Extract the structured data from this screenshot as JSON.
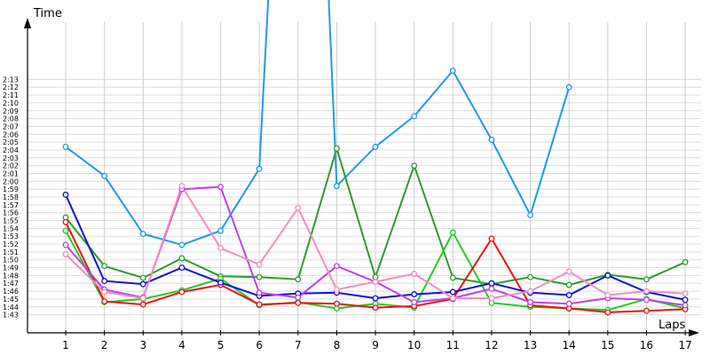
{
  "chart_data": {
    "type": "line",
    "ylabel": "Time",
    "xlabel": "Laps",
    "x": [
      1,
      2,
      3,
      4,
      5,
      6,
      7,
      8,
      9,
      10,
      11,
      12,
      13,
      14,
      15,
      16,
      17
    ],
    "y_tick_labels": [
      "1:43",
      "1:44",
      "1:45",
      "1:46",
      "1:47",
      "1:48",
      "1:49",
      "1:50",
      "1:51",
      "1:52",
      "1:53",
      "1:54",
      "1:55",
      "1:56",
      "1:57",
      "1:58",
      "1:59",
      "2:00",
      "2:01",
      "2:02",
      "2:03",
      "2:04",
      "2:05",
      "2:06",
      "2:07",
      "2:08",
      "2:09",
      "2:10",
      "2:11",
      "2:12",
      "2:13"
    ],
    "grid": true,
    "series": [
      {
        "color": "#1E9BE8",
        "points": [
          [
            1,
            "2:04.4"
          ],
          [
            2,
            "2:00.7"
          ],
          [
            3,
            "1:53.3"
          ],
          [
            4,
            "1:51.9"
          ],
          [
            5,
            "1:53.7"
          ],
          [
            6,
            "2:01.6"
          ],
          [
            8,
            "1:59.4"
          ],
          [
            9,
            "2:04.4"
          ],
          [
            10,
            "2:08.3"
          ],
          [
            11,
            "2:14.1"
          ],
          [
            12,
            "2:05.3"
          ],
          [
            13,
            "1:55.7"
          ],
          [
            14,
            "2:12.0"
          ]
        ]
      },
      {
        "color": "#2E9B2E",
        "points": [
          [
            1,
            "1:55.4"
          ],
          [
            2,
            "1:49.2"
          ],
          [
            3,
            "1:47.7"
          ],
          [
            4,
            "1:50.2"
          ],
          [
            5,
            "1:47.9"
          ],
          [
            6,
            "1:47.8"
          ],
          [
            7,
            "1:47.5"
          ],
          [
            8,
            "2:04.2"
          ],
          [
            9,
            "1:47.8"
          ],
          [
            10,
            "2:02.0"
          ],
          [
            11,
            "1:47.7"
          ],
          [
            12,
            "1:46.9"
          ],
          [
            13,
            "1:47.8"
          ],
          [
            14,
            "1:46.8"
          ],
          [
            15,
            "1:48.1"
          ],
          [
            16,
            "1:47.5"
          ],
          [
            17,
            "1:49.7"
          ]
        ]
      },
      {
        "color": "#22CC22",
        "points": [
          [
            1,
            "1:53.7"
          ],
          [
            2,
            "1:44.6"
          ],
          [
            3,
            "1:45.0"
          ],
          [
            4,
            "1:46.1"
          ],
          [
            5,
            "1:47.6"
          ],
          [
            6,
            "1:44.2"
          ],
          [
            7,
            "1:44.6"
          ],
          [
            8,
            "1:43.8"
          ],
          [
            9,
            "1:44.4"
          ],
          [
            10,
            "1:43.9"
          ],
          [
            11,
            "1:53.5"
          ],
          [
            12,
            "1:44.5"
          ],
          [
            13,
            "1:44.0"
          ],
          [
            14,
            "1:43.8"
          ],
          [
            15,
            "1:43.6"
          ],
          [
            16,
            "1:45.0"
          ],
          [
            17,
            "1:43.8"
          ]
        ]
      },
      {
        "color": "#EE1111",
        "points": [
          [
            1,
            "1:54.8"
          ],
          [
            2,
            "1:44.7"
          ],
          [
            3,
            "1:44.3"
          ],
          [
            4,
            "1:45.9"
          ],
          [
            5,
            "1:46.8"
          ],
          [
            6,
            "1:44.3"
          ],
          [
            7,
            "1:44.5"
          ],
          [
            8,
            "1:44.4"
          ],
          [
            9,
            "1:43.9"
          ],
          [
            10,
            "1:44.1"
          ],
          [
            11,
            "1:45.0"
          ],
          [
            12,
            "1:52.7"
          ],
          [
            13,
            "1:44.2"
          ],
          [
            14,
            "1:43.8"
          ],
          [
            15,
            "1:43.3"
          ],
          [
            16,
            "1:43.5"
          ],
          [
            17,
            "1:43.7"
          ]
        ]
      },
      {
        "color": "#1010DD",
        "points": [
          [
            1,
            "1:58.3"
          ],
          [
            2,
            "1:47.3"
          ],
          [
            3,
            "1:46.9"
          ],
          [
            4,
            "1:49.0"
          ],
          [
            5,
            "1:47.1"
          ],
          [
            6,
            "1:45.4"
          ],
          [
            7,
            "1:45.7"
          ],
          [
            8,
            "1:45.8"
          ],
          [
            9,
            "1:45.1"
          ],
          [
            10,
            "1:45.6"
          ],
          [
            11,
            "1:45.9"
          ],
          [
            12,
            "1:47.0"
          ],
          [
            13,
            "1:45.8"
          ],
          [
            14,
            "1:45.5"
          ],
          [
            15,
            "1:48.0"
          ],
          [
            16,
            "1:45.9"
          ],
          [
            17,
            "1:44.9"
          ]
        ]
      },
      {
        "color": "#C040E8",
        "points": [
          [
            1,
            "1:51.9"
          ],
          [
            2,
            "1:46.2"
          ],
          [
            3,
            "1:45.2"
          ],
          [
            4,
            "1:59.0"
          ],
          [
            5,
            "1:59.3"
          ],
          [
            6,
            "1:45.8"
          ],
          [
            7,
            "1:45.2"
          ],
          [
            8,
            "1:49.2"
          ],
          [
            9,
            "1:47.2"
          ],
          [
            10,
            "1:44.6"
          ],
          [
            11,
            "1:45.1"
          ],
          [
            12,
            "1:46.3"
          ],
          [
            13,
            "1:44.6"
          ],
          [
            14,
            "1:44.4"
          ],
          [
            15,
            "1:45.1"
          ],
          [
            16,
            "1:44.9"
          ],
          [
            17,
            "1:44.2"
          ]
        ]
      },
      {
        "color": "#F48CC0",
        "points": [
          [
            1,
            "1:50.7"
          ],
          [
            2,
            "1:45.9"
          ],
          [
            3,
            "1:45.1"
          ],
          [
            4,
            "1:59.4"
          ],
          [
            5,
            "1:51.5"
          ],
          [
            6,
            "1:49.4"
          ],
          [
            7,
            "1:56.6"
          ],
          [
            8,
            "1:46.2"
          ],
          [
            9,
            "1:47.2"
          ],
          [
            10,
            "1:48.2"
          ],
          [
            11,
            "1:45.1"
          ],
          [
            12,
            "1:45.1"
          ],
          [
            13,
            "1:46.0"
          ],
          [
            14,
            "1:48.5"
          ],
          [
            15,
            "1:45.5"
          ],
          [
            16,
            "1:46.0"
          ],
          [
            17,
            "1:45.7"
          ]
        ]
      }
    ],
    "offscale_segments": [
      {
        "series_index": 0,
        "color": "#1E9BE8",
        "x": [
          6,
          7,
          8
        ]
      }
    ]
  }
}
